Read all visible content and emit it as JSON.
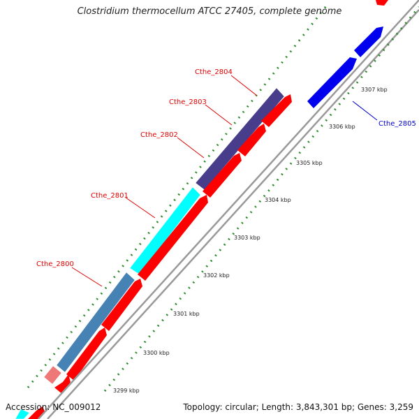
{
  "title": "Clostridium thermocellum ATCC 27405, complete genome",
  "accession": "Accession: NC_009012",
  "topology": "Topology: circular; Length: 3,843,301 bp; Genes: 3,259",
  "gene_labels": [
    "Cthe_2800",
    "Cthe_2801",
    "Cthe_2802",
    "Cthe_2803",
    "Cthe_2804",
    "Cthe_2805"
  ],
  "kbp_labels": [
    "3299 kbp",
    "3300 kbp",
    "3301 kbp",
    "3302 kbp",
    "3303 kbp",
    "3304 kbp",
    "3305 kbp",
    "3306 kbp",
    "3307 kbp"
  ],
  "colors": {
    "cds": "#ff0000",
    "gene_highlight": "#0000ee",
    "cthe_2800": "#4682b4",
    "cthe_2801": "#00ffff",
    "cthe_2802_2804": "#483d8b",
    "label_red": "#e00000",
    "label_blue": "#0000cc",
    "backbone": "#999999",
    "tick": "#2e8b2e"
  }
}
